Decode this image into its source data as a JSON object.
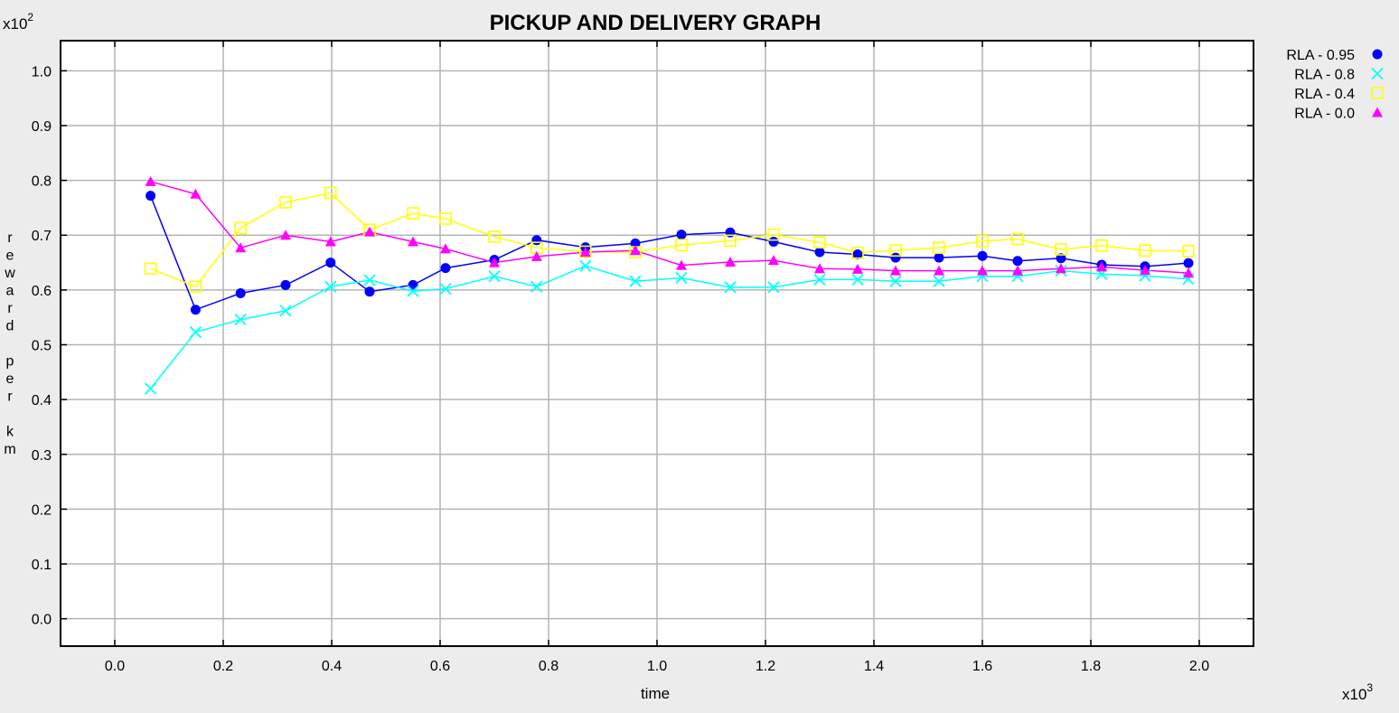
{
  "chart_data": {
    "type": "line",
    "title": "PICKUP AND DELIVERY GRAPH",
    "xlabel": "time",
    "ylabel": "reward per km",
    "x_multiplier": "x10",
    "x_multiplier_exp": "3",
    "y_multiplier": "x10",
    "y_multiplier_exp": "2",
    "xlim": [
      -0.1,
      2.1
    ],
    "ylim": [
      -0.05,
      1.055
    ],
    "x_ticks": [
      "0.0",
      "0.2",
      "0.4",
      "0.6",
      "0.8",
      "1.0",
      "1.2",
      "1.4",
      "1.6",
      "1.8",
      "2.0"
    ],
    "y_ticks": [
      "0.0",
      "0.1",
      "0.2",
      "0.3",
      "0.4",
      "0.5",
      "0.6",
      "0.7",
      "0.8",
      "0.9",
      "1.0"
    ],
    "grid": true,
    "legend_position": "right",
    "x": [
      0.066,
      0.149,
      0.232,
      0.315,
      0.398,
      0.47,
      0.55,
      0.61,
      0.7,
      0.778,
      0.868,
      0.96,
      1.045,
      1.135,
      1.215,
      1.3,
      1.37,
      1.44,
      1.52,
      1.6,
      1.665,
      1.745,
      1.82,
      1.9,
      1.98
    ],
    "series": [
      {
        "name": "RLA - 0.95",
        "color": "#0000ff",
        "marker": "circle",
        "values": [
          0.772,
          0.564,
          0.594,
          0.609,
          0.65,
          0.597,
          0.609,
          0.64,
          0.655,
          0.691,
          0.678,
          0.685,
          0.701,
          0.705,
          0.688,
          0.669,
          0.665,
          0.659,
          0.659,
          0.662,
          0.653,
          0.658,
          0.646,
          0.643,
          0.649
        ]
      },
      {
        "name": "RLA - 0.8",
        "color": "#00ffff",
        "marker": "x",
        "values": [
          0.42,
          0.523,
          0.546,
          0.562,
          0.606,
          0.618,
          0.598,
          0.602,
          0.625,
          0.606,
          0.644,
          0.616,
          0.622,
          0.605,
          0.605,
          0.619,
          0.619,
          0.616,
          0.616,
          0.625,
          0.625,
          0.635,
          0.629,
          0.626,
          0.62
        ]
      },
      {
        "name": "RLA - 0.4",
        "color": "#ffff00",
        "marker": "square",
        "values": [
          0.639,
          0.606,
          0.713,
          0.76,
          0.777,
          0.71,
          0.74,
          0.73,
          0.697,
          0.677,
          0.67,
          0.669,
          0.682,
          0.69,
          0.701,
          0.687,
          0.668,
          0.672,
          0.677,
          0.689,
          0.693,
          0.674,
          0.681,
          0.672,
          0.671
        ]
      },
      {
        "name": "RLA - 0.0",
        "color": "#ff00ff",
        "marker": "triangle",
        "values": [
          0.798,
          0.775,
          0.677,
          0.7,
          0.688,
          0.706,
          0.688,
          0.675,
          0.65,
          0.661,
          0.669,
          0.672,
          0.645,
          0.651,
          0.654,
          0.639,
          0.638,
          0.635,
          0.635,
          0.635,
          0.635,
          0.639,
          0.642,
          0.636,
          0.631
        ]
      }
    ]
  }
}
